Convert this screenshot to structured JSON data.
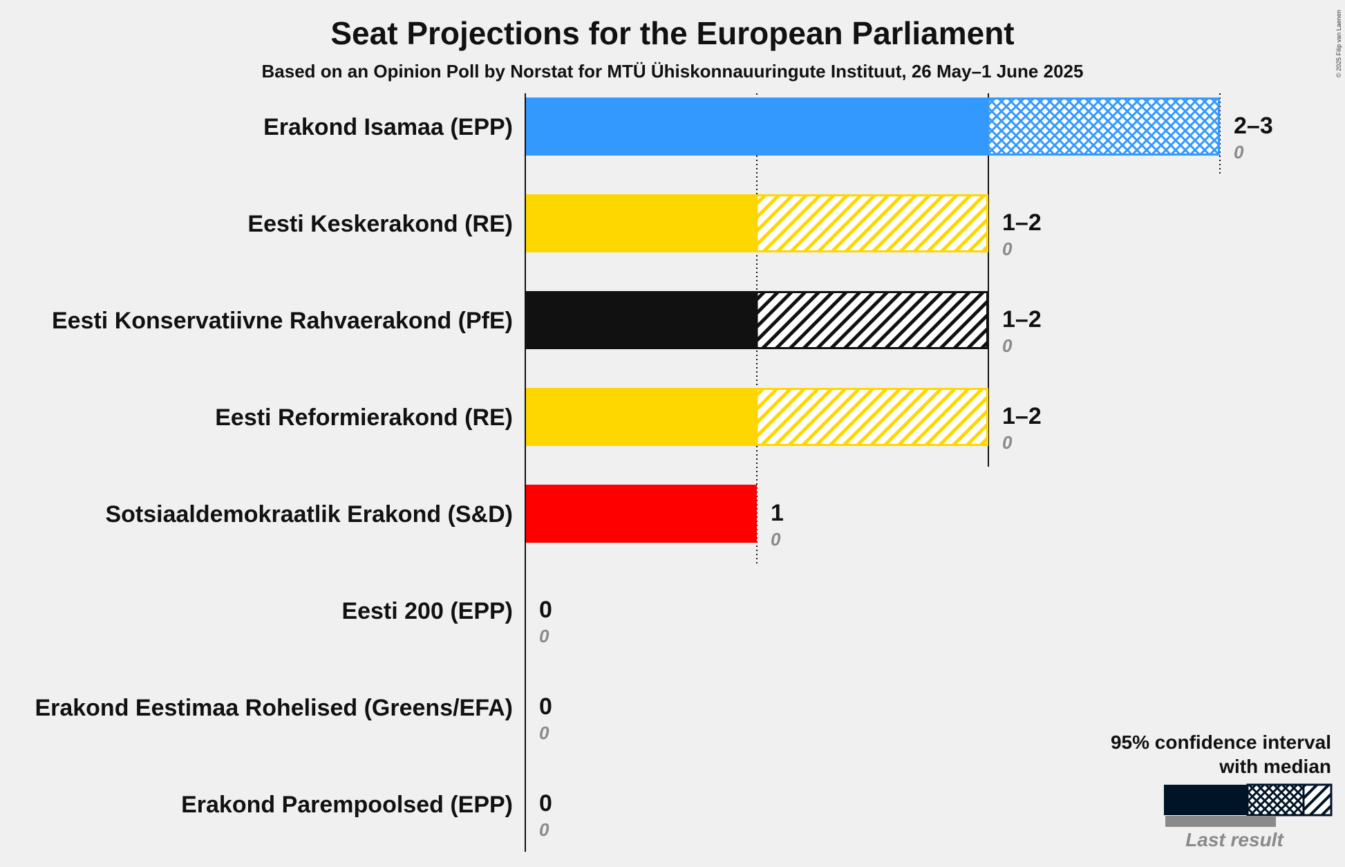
{
  "copyright": "© 2025 Filip van Laenen",
  "legend": {
    "line1": "95% confidence interval",
    "line2": "with median",
    "last_result": "Last result"
  },
  "chart_data": {
    "type": "bar",
    "orientation": "horizontal",
    "title": "Seat Projections for the European Parliament",
    "subtitle": "Based on an Opinion Poll by Norstat for MTÜ Ühiskonnauuringute Instituut, 26 May–1 June 2025",
    "xlim": [
      0,
      3
    ],
    "gridlines": [
      1,
      2,
      3
    ],
    "parties": [
      {
        "name": "Erakond Isamaa (EPP)",
        "low": 2,
        "median": 2,
        "high": 3,
        "range_label": "2–3",
        "last_result": 0,
        "last_label": "0",
        "color": "#3399ff",
        "pattern": "cross"
      },
      {
        "name": "Eesti Keskerakond (RE)",
        "low": 1,
        "median": 1,
        "high": 2,
        "range_label": "1–2",
        "last_result": 0,
        "last_label": "0",
        "color": "#ffd700",
        "pattern": "diag"
      },
      {
        "name": "Eesti Konservatiivne Rahvaerakond (PfE)",
        "low": 1,
        "median": 1,
        "high": 2,
        "range_label": "1–2",
        "last_result": 0,
        "last_label": "0",
        "color": "#111111",
        "pattern": "diag"
      },
      {
        "name": "Eesti Reformierakond (RE)",
        "low": 1,
        "median": 1,
        "high": 2,
        "range_label": "1–2",
        "last_result": 0,
        "last_label": "0",
        "color": "#ffd700",
        "pattern": "diag"
      },
      {
        "name": "Sotsiaaldemokraatlik Erakond (S&D)",
        "low": 1,
        "median": 1,
        "high": 1,
        "range_label": "1",
        "last_result": 0,
        "last_label": "0",
        "color": "#ff0000",
        "pattern": "none"
      },
      {
        "name": "Eesti 200 (EPP)",
        "low": 0,
        "median": 0,
        "high": 0,
        "range_label": "0",
        "last_result": 0,
        "last_label": "0",
        "color": "#00aaff",
        "pattern": "none"
      },
      {
        "name": "Erakond Eestimaa Rohelised (Greens/EFA)",
        "low": 0,
        "median": 0,
        "high": 0,
        "range_label": "0",
        "last_result": 0,
        "last_label": "0",
        "color": "#33aa33",
        "pattern": "none"
      },
      {
        "name": "Erakond Parempoolsed (EPP)",
        "low": 0,
        "median": 0,
        "high": 0,
        "range_label": "0",
        "last_result": 0,
        "last_label": "0",
        "color": "#3366cc",
        "pattern": "none"
      }
    ]
  }
}
